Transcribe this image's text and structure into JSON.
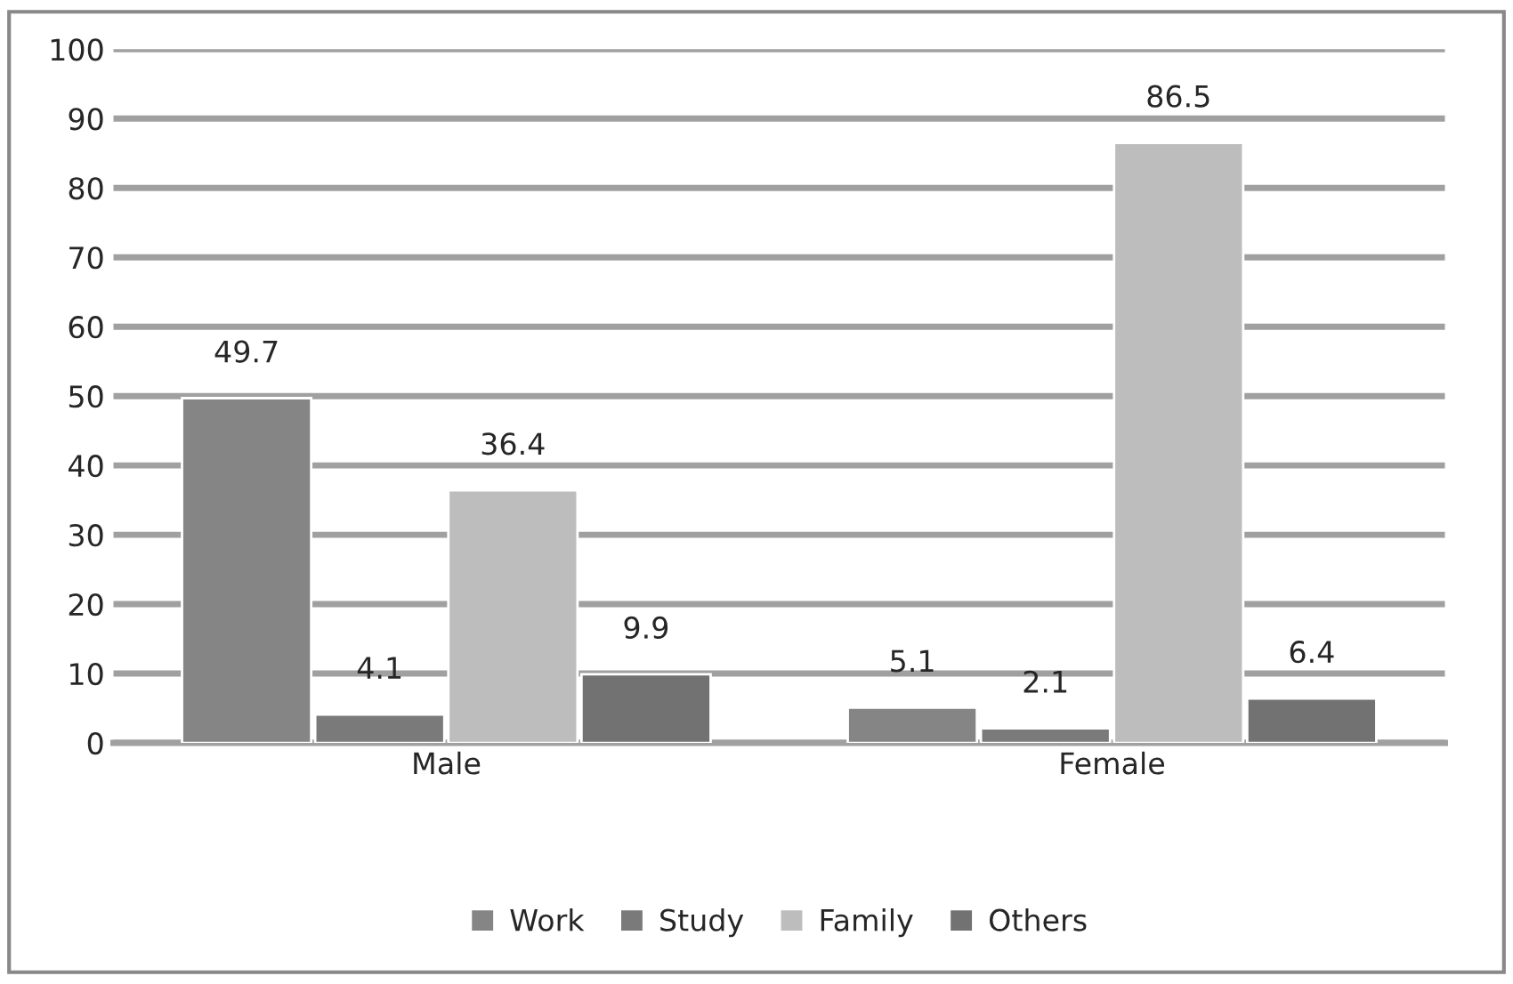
{
  "chart_data": {
    "type": "bar",
    "categories": [
      "Male",
      "Female"
    ],
    "series": [
      {
        "name": "Work",
        "color": "#858585",
        "values": [
          49.7,
          5.1
        ]
      },
      {
        "name": "Study",
        "color": "#7a7a7a",
        "values": [
          4.1,
          2.1
        ]
      },
      {
        "name": "Family",
        "color": "#bdbdbd",
        "values": [
          36.4,
          86.5
        ]
      },
      {
        "name": "Others",
        "color": "#727272",
        "values": [
          9.9,
          6.4
        ]
      }
    ],
    "ylim": [
      0,
      100
    ],
    "yticks": [
      0,
      10,
      20,
      30,
      40,
      50,
      60,
      70,
      80,
      90,
      100
    ],
    "grid": "y",
    "legend": "bottom",
    "data_labels": true
  }
}
